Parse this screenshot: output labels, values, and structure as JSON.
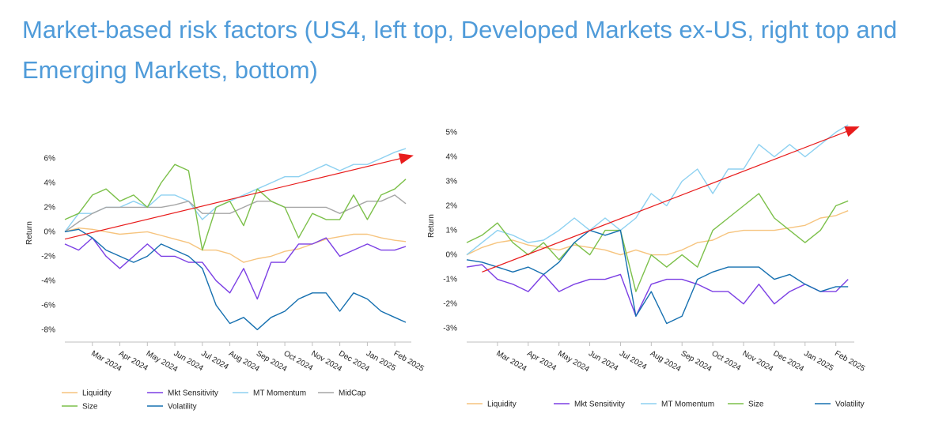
{
  "title": "Market-based risk factors (US4, left top, Developed Markets ex-US, right top and Emerging Markets, bottom)",
  "chart_data": [
    {
      "type": "line",
      "panel": "US4",
      "ylabel": "Return",
      "ylim": [
        -8.5,
        7
      ],
      "yticks": [
        -8,
        -6,
        -4,
        -2,
        0,
        2,
        4,
        6
      ],
      "ytick_labels": [
        "-8%",
        "-6%",
        "-4%",
        "-2%",
        "0%",
        "2%",
        "4%",
        "6%"
      ],
      "x_start": 0,
      "x_end": 12,
      "x_ticks": [
        1,
        2,
        3,
        4,
        5,
        6,
        7,
        8,
        9,
        10,
        11,
        12
      ],
      "x_tick_labels": [
        "Mar 2024",
        "Apr 2024",
        "May 2024",
        "Jun 2024",
        "Jul 2024",
        "Aug 2024",
        "Sep 2024",
        "Oct 2024",
        "Nov 2024",
        "Dec 2024",
        "Jan 2025",
        "Feb 2025"
      ],
      "legend": [
        "Liquidity",
        "Mkt Sensitivity",
        "MT Momentum",
        "MidCap",
        "Size",
        "Volatility"
      ],
      "arrow": {
        "from": [
          0,
          -0.6
        ],
        "to": [
          12.6,
          6.2
        ],
        "color": "#E81C1C"
      },
      "series": [
        {
          "name": "Liquidity",
          "color": "#F6C47E",
          "x": [
            0,
            0.5,
            1,
            1.5,
            2,
            2.5,
            3,
            3.5,
            4,
            4.5,
            5,
            5.5,
            6,
            6.5,
            7,
            7.5,
            8,
            8.5,
            9,
            9.5,
            10,
            10.5,
            11,
            11.5,
            12,
            12.4
          ],
          "y": [
            0,
            0.3,
            0.2,
            0,
            -0.2,
            -0.1,
            0,
            -0.3,
            -0.6,
            -0.9,
            -1.5,
            -1.5,
            -1.8,
            -2.5,
            -2.2,
            -2.0,
            -1.6,
            -1.4,
            -1.0,
            -0.6,
            -0.4,
            -0.2,
            -0.2,
            -0.5,
            -0.7,
            -0.8
          ]
        },
        {
          "name": "Mkt Sensitivity",
          "color": "#7B3FE4",
          "x": [
            0,
            0.5,
            1,
            1.5,
            2,
            2.5,
            3,
            3.5,
            4,
            4.5,
            5,
            5.5,
            6,
            6.5,
            7,
            7.5,
            8,
            8.5,
            9,
            9.5,
            10,
            10.5,
            11,
            11.5,
            12,
            12.4
          ],
          "y": [
            -1.0,
            -1.5,
            -0.5,
            -2.0,
            -3.0,
            -2.0,
            -1.0,
            -2.0,
            -2.0,
            -2.5,
            -2.5,
            -4.0,
            -5.0,
            -3.0,
            -5.5,
            -2.5,
            -2.5,
            -1.0,
            -1.0,
            -0.5,
            -2.0,
            -1.5,
            -1.0,
            -1.5,
            -1.5,
            -1.2
          ]
        },
        {
          "name": "MT Momentum",
          "color": "#8ED1F1",
          "x": [
            0,
            0.5,
            1,
            1.5,
            2,
            2.5,
            3,
            3.5,
            4,
            4.5,
            5,
            5.5,
            6,
            6.5,
            7,
            7.5,
            8,
            8.5,
            9,
            9.5,
            10,
            10.5,
            11,
            11.5,
            12,
            12.4
          ],
          "y": [
            0,
            1.5,
            1.5,
            2.0,
            2.0,
            2.5,
            2.0,
            3.0,
            3.0,
            2.5,
            1.0,
            2.0,
            2.5,
            3.0,
            3.5,
            4.0,
            4.5,
            4.5,
            5.0,
            5.5,
            5.0,
            5.5,
            5.5,
            6.0,
            6.5,
            6.8
          ]
        },
        {
          "name": "MidCap",
          "color": "#A6A6A6",
          "x": [
            0,
            0.5,
            1,
            1.5,
            2,
            2.5,
            3,
            3.5,
            4,
            4.5,
            5,
            5.5,
            6,
            6.5,
            7,
            7.5,
            8,
            8.5,
            9,
            9.5,
            10,
            10.5,
            11,
            11.5,
            12,
            12.4
          ],
          "y": [
            0,
            0.8,
            1.5,
            2.0,
            2.0,
            2.0,
            2.0,
            2.0,
            2.2,
            2.5,
            1.5,
            1.5,
            1.5,
            2.0,
            2.5,
            2.5,
            2.0,
            2.0,
            2.0,
            2.0,
            1.5,
            2.0,
            2.5,
            2.5,
            3.0,
            2.3
          ]
        },
        {
          "name": "Size",
          "color": "#7CC04A",
          "x": [
            0,
            0.5,
            1,
            1.5,
            2,
            2.5,
            3,
            3.5,
            4,
            4.5,
            5,
            5.5,
            6,
            6.5,
            7,
            7.5,
            8,
            8.5,
            9,
            9.5,
            10,
            10.5,
            11,
            11.5,
            12,
            12.4
          ],
          "y": [
            1.0,
            1.5,
            3.0,
            3.5,
            2.5,
            3.0,
            2.0,
            4.0,
            5.5,
            5.0,
            -1.5,
            2.0,
            2.5,
            0.5,
            3.5,
            2.5,
            2.0,
            -0.5,
            1.5,
            1.0,
            1.0,
            3.0,
            1.0,
            3.0,
            3.5,
            4.3
          ]
        },
        {
          "name": "Volatility",
          "color": "#1670B0",
          "x": [
            0,
            0.5,
            1,
            1.5,
            2,
            2.5,
            3,
            3.5,
            4,
            4.5,
            5,
            5.5,
            6,
            6.5,
            7,
            7.5,
            8,
            8.5,
            9,
            9.5,
            10,
            10.5,
            11,
            11.5,
            12,
            12.4
          ],
          "y": [
            0,
            0.2,
            -0.5,
            -1.5,
            -2.0,
            -2.5,
            -2.0,
            -1.0,
            -1.5,
            -2.0,
            -3.0,
            -6.0,
            -7.5,
            -7.0,
            -8.0,
            -7.0,
            -6.5,
            -5.5,
            -5.0,
            -5.0,
            -6.5,
            -5.0,
            -5.5,
            -6.5,
            -7.0,
            -7.4
          ]
        }
      ]
    },
    {
      "type": "line",
      "panel": "Developed Markets ex-US",
      "ylabel": "Return",
      "ylim": [
        -3.3,
        5.4
      ],
      "yticks": [
        -3,
        -2,
        -1,
        0,
        1,
        2,
        3,
        4,
        5
      ],
      "ytick_labels": [
        "-3%",
        "-2%",
        "-1%",
        "0%",
        "1%",
        "2%",
        "3%",
        "4%",
        "5%"
      ],
      "x_start": 0,
      "x_end": 12,
      "x_ticks": [
        1,
        2,
        3,
        4,
        5,
        6,
        7,
        8,
        9,
        10,
        11,
        12
      ],
      "x_tick_labels": [
        "Mar 2024",
        "Apr 2024",
        "May 2024",
        "Jun 2024",
        "Jul 2024",
        "Aug 2024",
        "Sep 2024",
        "Oct 2024",
        "Nov 2024",
        "Dec 2024",
        "Jan 2025",
        "Feb 2025"
      ],
      "legend": [
        "Liquidity",
        "Mkt Sensitivity",
        "MT Momentum",
        "Size",
        "Volatility"
      ],
      "arrow": {
        "from": [
          0.5,
          -0.7
        ],
        "to": [
          12.7,
          5.2
        ],
        "color": "#E81C1C"
      },
      "series": [
        {
          "name": "Liquidity",
          "color": "#F6C47E",
          "x": [
            0,
            0.5,
            1,
            1.5,
            2,
            2.5,
            3,
            3.5,
            4,
            4.5,
            5,
            5.5,
            6,
            6.5,
            7,
            7.5,
            8,
            8.5,
            9,
            9.5,
            10,
            10.5,
            11,
            11.5,
            12,
            12.4
          ],
          "y": [
            0,
            0.3,
            0.5,
            0.6,
            0.4,
            0.3,
            0.2,
            0.4,
            0.3,
            0.2,
            0.0,
            0.2,
            0.0,
            0.0,
            0.2,
            0.5,
            0.6,
            0.9,
            1.0,
            1.0,
            1.0,
            1.1,
            1.2,
            1.5,
            1.6,
            1.8
          ]
        },
        {
          "name": "Mkt Sensitivity",
          "color": "#7B3FE4",
          "x": [
            0,
            0.5,
            1,
            1.5,
            2,
            2.5,
            3,
            3.5,
            4,
            4.5,
            5,
            5.5,
            6,
            6.5,
            7,
            7.5,
            8,
            8.5,
            9,
            9.5,
            10,
            10.5,
            11,
            11.5,
            12,
            12.4
          ],
          "y": [
            -0.5,
            -0.4,
            -1.0,
            -1.2,
            -1.5,
            -0.8,
            -1.5,
            -1.2,
            -1.0,
            -1.0,
            -0.8,
            -2.5,
            -1.2,
            -1.0,
            -1.0,
            -1.2,
            -1.5,
            -1.5,
            -2.0,
            -1.2,
            -2.0,
            -1.5,
            -1.2,
            -1.5,
            -1.5,
            -1.0
          ]
        },
        {
          "name": "MT Momentum",
          "color": "#8ED1F1",
          "x": [
            0,
            0.5,
            1,
            1.5,
            2,
            2.5,
            3,
            3.5,
            4,
            4.5,
            5,
            5.5,
            6,
            6.5,
            7,
            7.5,
            8,
            8.5,
            9,
            9.5,
            10,
            10.5,
            11,
            11.5,
            12,
            12.4
          ],
          "y": [
            0,
            0.5,
            1.0,
            0.8,
            0.5,
            0.6,
            1.0,
            1.5,
            1.0,
            1.5,
            1.0,
            1.5,
            2.5,
            2.0,
            3.0,
            3.5,
            2.5,
            3.5,
            3.5,
            4.5,
            4.0,
            4.5,
            4.0,
            4.5,
            5.0,
            5.3
          ]
        },
        {
          "name": "Size",
          "color": "#7CC04A",
          "x": [
            0,
            0.5,
            1,
            1.5,
            2,
            2.5,
            3,
            3.5,
            4,
            4.5,
            5,
            5.5,
            6,
            6.5,
            7,
            7.5,
            8,
            8.5,
            9,
            9.5,
            10,
            10.5,
            11,
            11.5,
            12,
            12.4
          ],
          "y": [
            0.5,
            0.8,
            1.3,
            0.5,
            0.0,
            0.5,
            -0.2,
            0.5,
            0.0,
            1.0,
            1.0,
            -1.5,
            0.0,
            -0.5,
            0.0,
            -0.5,
            1.0,
            1.5,
            2.0,
            2.5,
            1.5,
            1.0,
            0.5,
            1.0,
            2.0,
            2.2
          ]
        },
        {
          "name": "Volatility",
          "color": "#1670B0",
          "x": [
            0,
            0.5,
            1,
            1.5,
            2,
            2.5,
            3,
            3.5,
            4,
            4.5,
            5,
            5.5,
            6,
            6.5,
            7,
            7.5,
            8,
            8.5,
            9,
            9.5,
            10,
            10.5,
            11,
            11.5,
            12,
            12.4
          ],
          "y": [
            -0.2,
            -0.3,
            -0.5,
            -0.7,
            -0.5,
            -0.8,
            -0.3,
            0.5,
            1.0,
            0.8,
            1.0,
            -2.5,
            -1.5,
            -2.8,
            -2.5,
            -1.0,
            -0.7,
            -0.5,
            -0.5,
            -0.5,
            -1.0,
            -0.8,
            -1.2,
            -1.5,
            -1.3,
            -1.3
          ]
        }
      ]
    }
  ]
}
